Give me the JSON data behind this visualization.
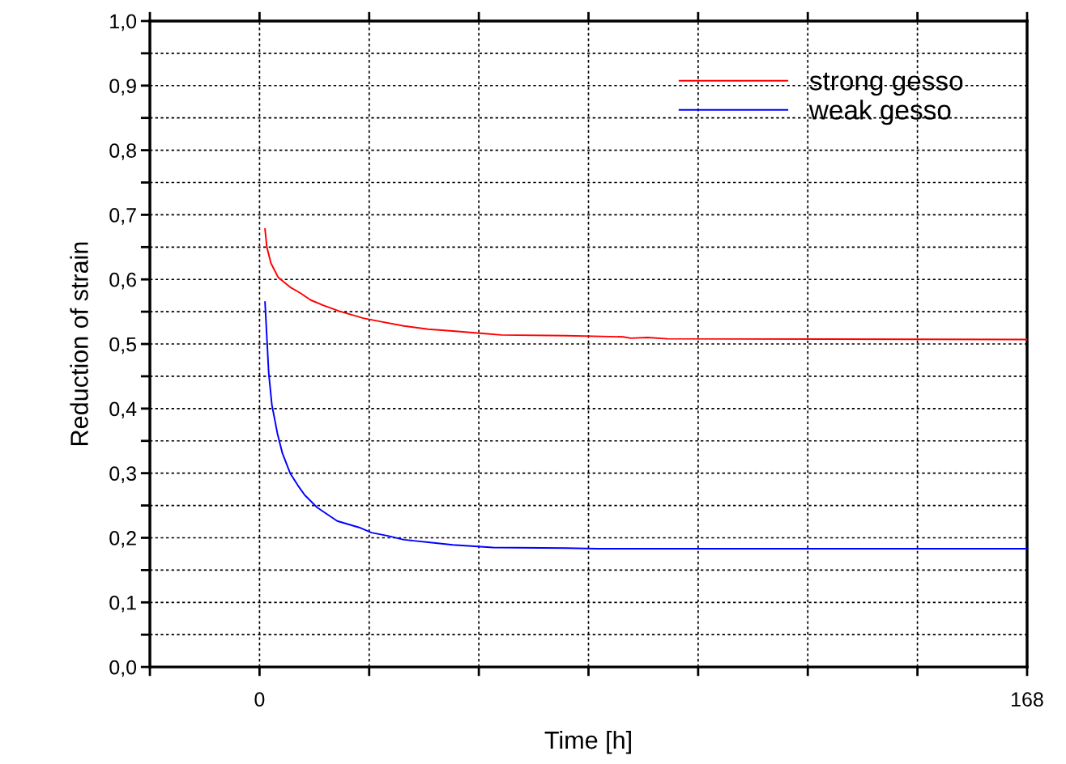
{
  "chart_data": {
    "type": "line",
    "xlabel": "Time [h]",
    "ylabel": "Reduction of strain",
    "series": [
      {
        "name": "strong gesso",
        "color": "#ff0000",
        "x": [
          1.2,
          1.6,
          2.5,
          4.1,
          6.7,
          8.9,
          11.2,
          13.9,
          17.4,
          22.7,
          26.3,
          31.6,
          36.9,
          42.3,
          49.4,
          52.9,
          67.1,
          79.6,
          81.3,
          84.9,
          89.3,
          168
        ],
        "values": [
          0.678,
          0.65,
          0.625,
          0.603,
          0.588,
          0.579,
          0.568,
          0.56,
          0.551,
          0.54,
          0.535,
          0.528,
          0.523,
          0.52,
          0.516,
          0.514,
          0.513,
          0.511,
          0.509,
          0.51,
          0.508,
          0.507
        ]
      },
      {
        "name": "weak gesso",
        "color": "#0000ff",
        "x": [
          1.2,
          2.0,
          2.7,
          3.9,
          5.0,
          6.7,
          8.4,
          9.9,
          12.6,
          17.0,
          21.8,
          24.5,
          28.1,
          31.6,
          36.9,
          42.3,
          51.1,
          67.1,
          74.2,
          168
        ],
        "values": [
          0.565,
          0.456,
          0.406,
          0.362,
          0.331,
          0.3,
          0.281,
          0.266,
          0.247,
          0.226,
          0.216,
          0.208,
          0.203,
          0.197,
          0.193,
          0.189,
          0.185,
          0.184,
          0.183,
          0.183
        ]
      }
    ],
    "xlim": [
      -24,
      168
    ],
    "xticks": [
      {
        "value": -24,
        "label": null
      },
      0,
      {
        "value": 24,
        "label": null
      },
      {
        "value": 48,
        "label": null
      },
      {
        "value": 72,
        "label": null
      },
      {
        "value": 96,
        "label": null
      },
      {
        "value": 120,
        "label": null
      },
      {
        "value": 144,
        "label": null
      },
      168
    ],
    "ylim": [
      0,
      1
    ],
    "yticks": [
      {
        "value": 0,
        "label": "0,0"
      },
      {
        "value": 0.05,
        "label": null
      },
      {
        "value": 0.1,
        "label": "0,1"
      },
      {
        "value": 0.15,
        "label": null
      },
      {
        "value": 0.2,
        "label": "0,2"
      },
      {
        "value": 0.25,
        "label": null
      },
      {
        "value": 0.3,
        "label": "0,3"
      },
      {
        "value": 0.35,
        "label": null
      },
      {
        "value": 0.4,
        "label": "0,4"
      },
      {
        "value": 0.45,
        "label": null
      },
      {
        "value": 0.5,
        "label": "0,5"
      },
      {
        "value": 0.55,
        "label": null
      },
      {
        "value": 0.6,
        "label": "0,6"
      },
      {
        "value": 0.65,
        "label": null
      },
      {
        "value": 0.7,
        "label": "0,7"
      },
      {
        "value": 0.75,
        "label": null
      },
      {
        "value": 0.8,
        "label": "0,8"
      },
      {
        "value": 0.85,
        "label": null
      },
      {
        "value": 0.9,
        "label": "0,9"
      },
      {
        "value": 0.95,
        "label": null
      },
      {
        "value": 1.0,
        "label": "1,0"
      }
    ],
    "grid": true,
    "legend": "top right",
    "marker": "none",
    "line_style": "solid"
  }
}
